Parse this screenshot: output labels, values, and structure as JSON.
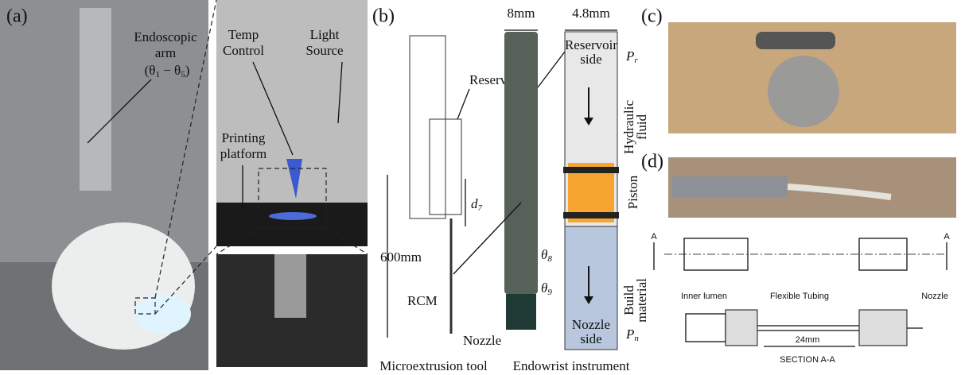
{
  "panel_a": {
    "label": "(a)",
    "arm": {
      "line1": "Endoscopic",
      "line2": "arm",
      "open": "(θ",
      "sub1": "1",
      "mid": " − θ",
      "sub2": "5",
      "close": ")"
    },
    "temp_control": {
      "line1": "Temp",
      "line2": "Control"
    },
    "light_source": {
      "line1": "Light",
      "line2": "Source"
    },
    "printing_platform": {
      "line1": "Printing",
      "line2": "platform"
    }
  },
  "panel_b": {
    "label": "(b)",
    "reservoir": "Reservoir",
    "d7": {
      "symbol": "d",
      "subscript": "7"
    },
    "length": "600mm",
    "rcm": "RCM",
    "nozzle": "Nozzle",
    "diameter": "8mm",
    "theta8": {
      "symbol": "θ",
      "subscript": "8"
    },
    "theta9": {
      "symbol": "θ",
      "subscript": "9"
    },
    "inner_diameter": "4.8mm",
    "reservoir_side": {
      "line1": "Reservoir",
      "line2": "side"
    },
    "pr": {
      "symbol": "P",
      "subscript": "r"
    },
    "hydraulic_fluid": {
      "line1": "Hydraulic",
      "line2": "fluid"
    },
    "piston": "Piston",
    "build_material": {
      "line1": "Build",
      "line2": "material"
    },
    "nozzle_side": {
      "line1": "Nozzle",
      "line2": "side"
    },
    "pn": {
      "symbol": "P",
      "subscript": "n"
    },
    "caption_tool": "Microextrusion tool",
    "caption_instrument": "Endowrist instrument"
  },
  "panel_c": {
    "label": "(c)"
  },
  "panel_d": {
    "label": "(d)",
    "section_left": "A",
    "section_right": "A",
    "inner_lumen": "Inner lumen",
    "flexible_tubing": "Flexible Tubing",
    "nozzle": "Nozzle",
    "length": "24mm",
    "section": "SECTION A-A"
  }
}
